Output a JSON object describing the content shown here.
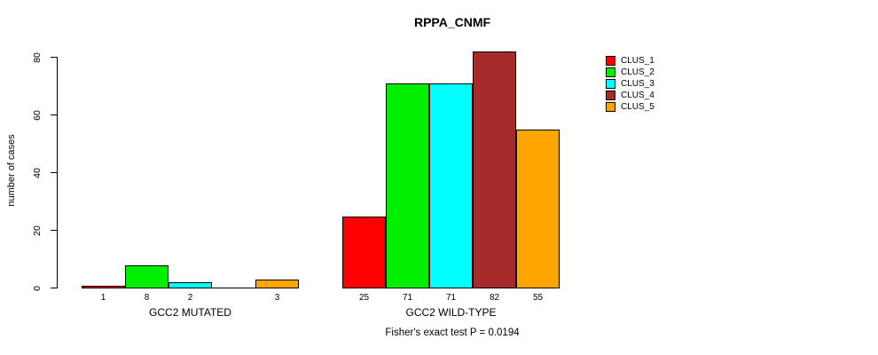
{
  "chart_data": {
    "type": "bar",
    "title": "RPPA_CNMF",
    "ylabel": "number of cases",
    "xlabel": "",
    "ylim": [
      0,
      80
    ],
    "yticks": [
      0,
      20,
      40,
      60,
      80
    ],
    "grid": false,
    "categories": [
      "GCC2 MUTATED",
      "GCC2 WILD-TYPE"
    ],
    "series": [
      {
        "name": "CLUS_1",
        "color": "#FF0000",
        "values": [
          1,
          25
        ]
      },
      {
        "name": "CLUS_2",
        "color": "#00EE00",
        "values": [
          8,
          71
        ]
      },
      {
        "name": "CLUS_3",
        "color": "#00FFFF",
        "values": [
          2,
          71
        ]
      },
      {
        "name": "CLUS_4",
        "color": "#A52A2A",
        "values": [
          0,
          82
        ]
      },
      {
        "name": "CLUS_5",
        "color": "#FFA500",
        "values": [
          3,
          55
        ]
      }
    ],
    "bar_value_labels": [
      [
        "1",
        "8",
        "2",
        "",
        "3"
      ],
      [
        "25",
        "71",
        "71",
        "82",
        "55"
      ]
    ],
    "legend": {
      "position": "right",
      "entries": [
        {
          "label": "CLUS_1",
          "color": "#FF0000"
        },
        {
          "label": "CLUS_2",
          "color": "#00EE00"
        },
        {
          "label": "CLUS_3",
          "color": "#00FFFF"
        },
        {
          "label": "CLUS_4",
          "color": "#A52A2A"
        },
        {
          "label": "CLUS_5",
          "color": "#FFA500"
        }
      ]
    },
    "footer": "Fisher's exact test P = 0.0194"
  }
}
